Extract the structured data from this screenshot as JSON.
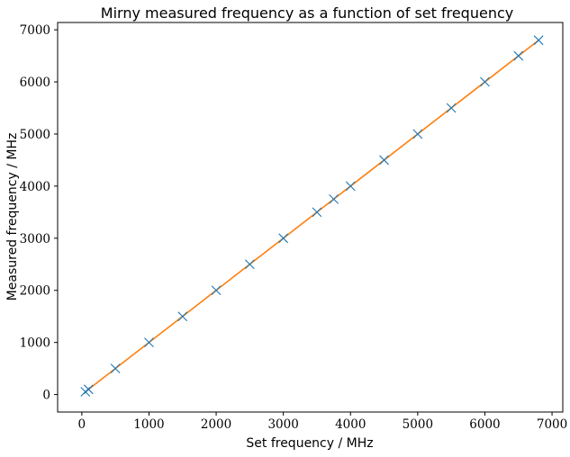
{
  "chart_data": {
    "type": "scatter",
    "title": "Mirny measured frequency as a function of set frequency",
    "xlabel": "Set frequency / MHz",
    "ylabel": "Measured frequency / MHz",
    "xlim": [
      -360,
      7160
    ],
    "ylim": [
      -335,
      7140
    ],
    "xticks": [
      0,
      1000,
      2000,
      3000,
      4000,
      5000,
      6000,
      7000
    ],
    "yticks": [
      0,
      1000,
      2000,
      3000,
      4000,
      5000,
      6000,
      7000
    ],
    "grid": false,
    "series": [
      {
        "kind": "scatter",
        "marker": "x",
        "color": "#1f77b4",
        "x": [
          53,
          100,
          500,
          1000,
          1500,
          2000,
          2500,
          3000,
          3500,
          3750,
          4000,
          4500,
          5000,
          5500,
          6000,
          6500,
          6800
        ],
        "y": [
          53,
          100,
          500,
          1000,
          1500,
          2000,
          2500,
          3000,
          3500,
          3750,
          4000,
          4500,
          5000,
          5500,
          6000,
          6500,
          6800
        ]
      },
      {
        "kind": "line",
        "color": "#ff7f0e",
        "x": [
          53,
          6800
        ],
        "y": [
          53,
          6800
        ]
      }
    ]
  }
}
